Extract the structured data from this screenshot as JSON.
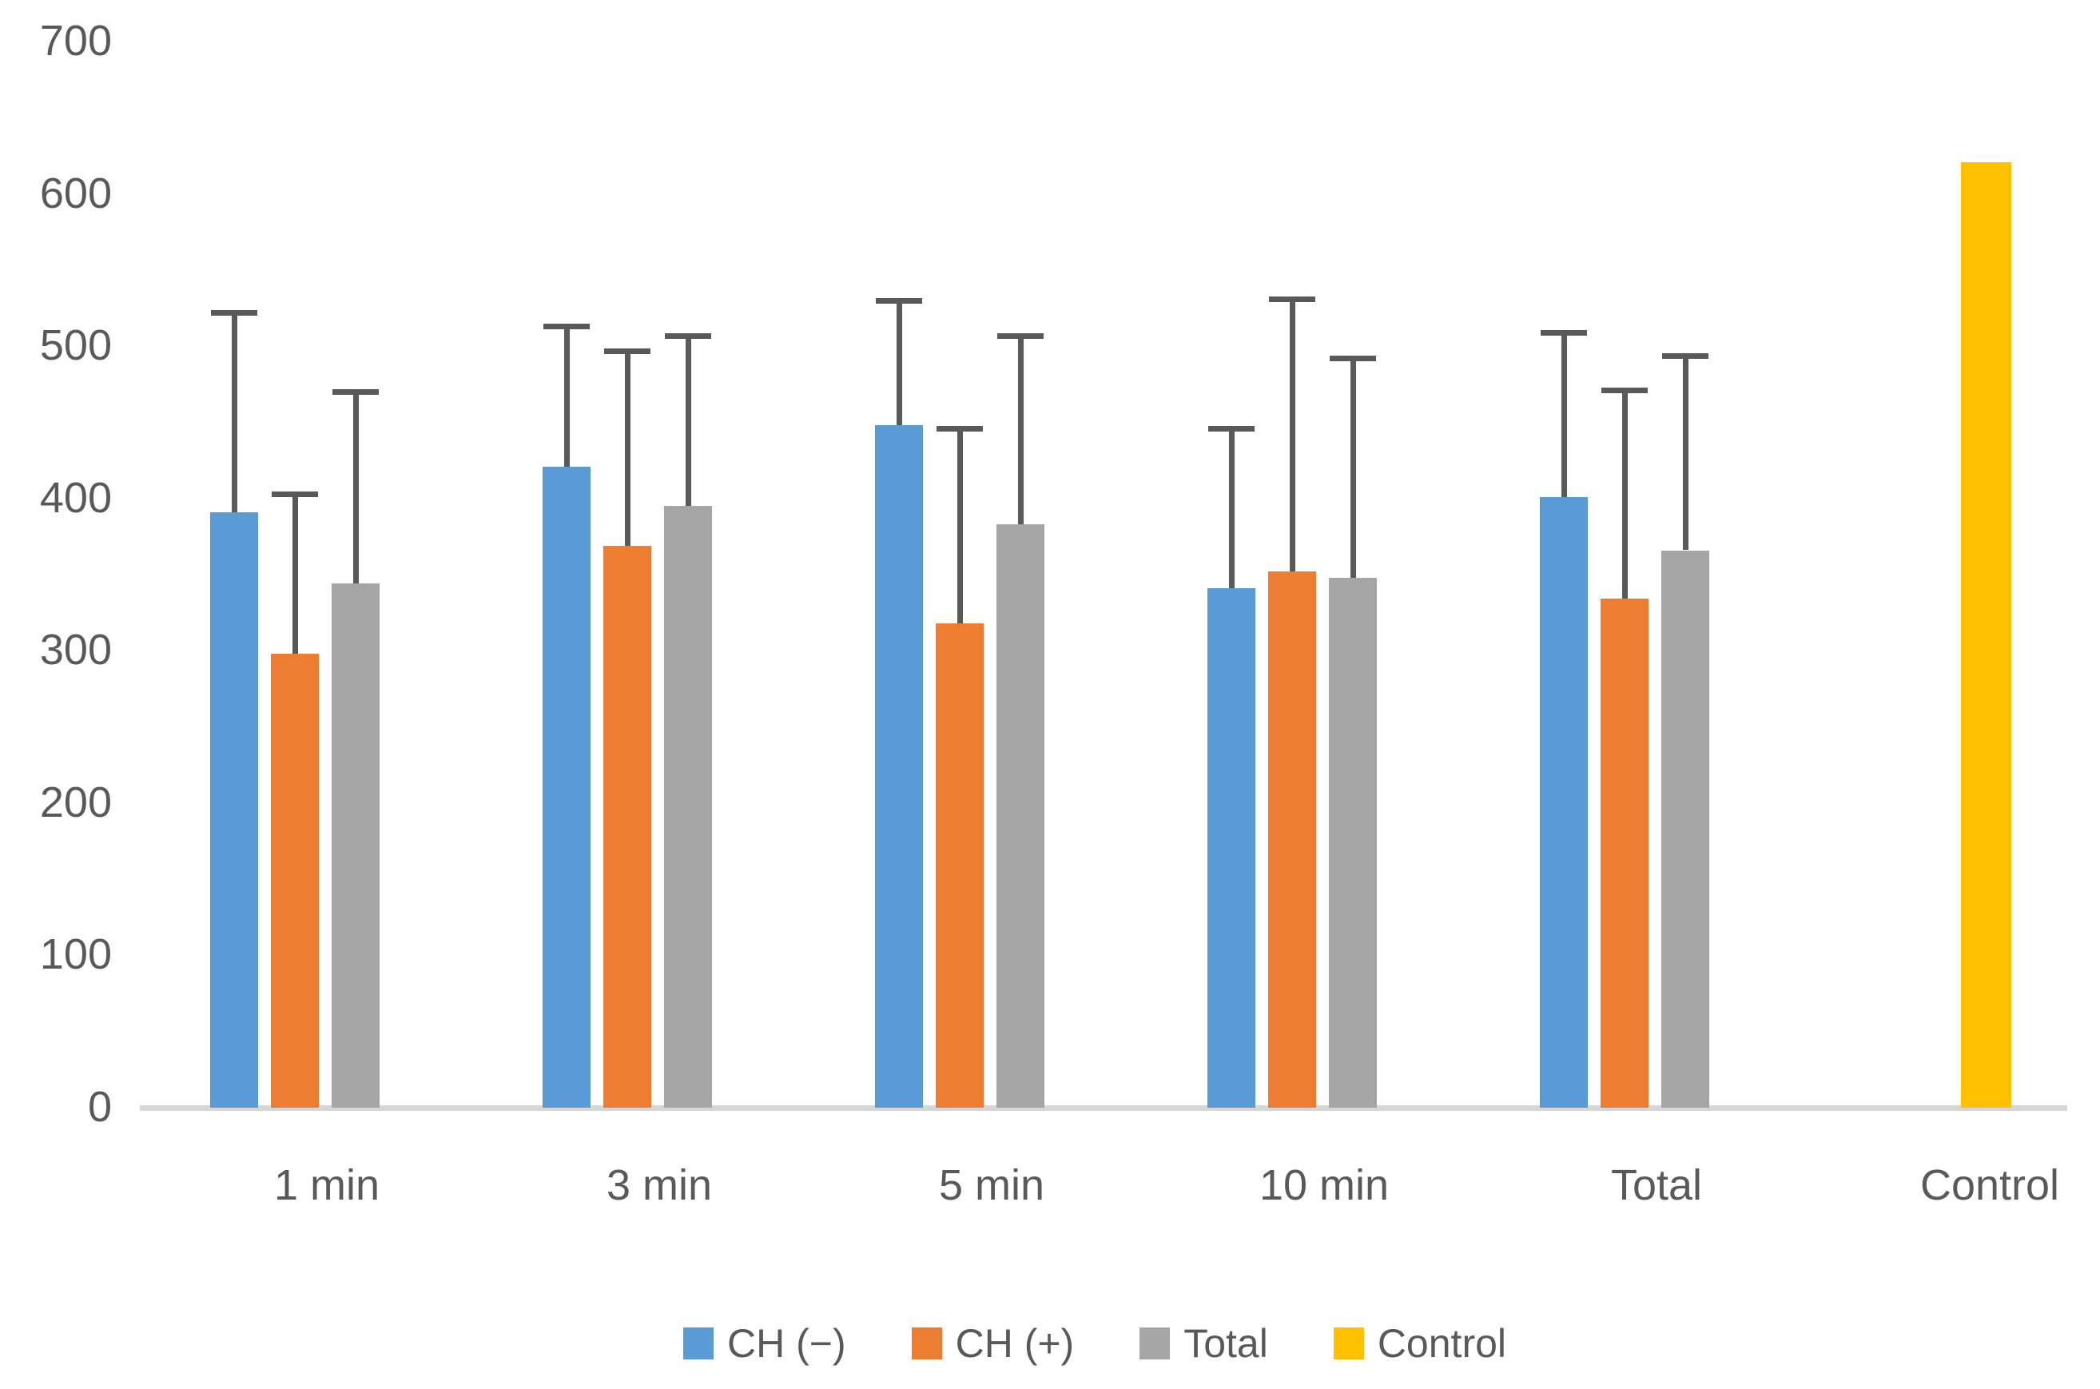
{
  "chart_data": {
    "type": "bar",
    "title": "",
    "categories": [
      "1 min",
      "3 min",
      "5 min",
      "10 min",
      "Total",
      "Control"
    ],
    "series": [
      {
        "name": "CH (−)",
        "color": "#5B9BD5",
        "values": [
          391,
          421,
          448,
          341,
          401,
          null
        ],
        "errors_plus": [
          131,
          92,
          82,
          105,
          108,
          null
        ]
      },
      {
        "name": "CH (+)",
        "color": "#ED7D31",
        "values": [
          298,
          369,
          318,
          352,
          334,
          null
        ],
        "errors_plus": [
          105,
          128,
          128,
          179,
          137,
          null
        ]
      },
      {
        "name": "Total",
        "color": "#A5A5A5",
        "values": [
          344,
          395,
          383,
          348,
          366,
          null
        ],
        "errors_plus": [
          126,
          112,
          124,
          144,
          128,
          null
        ]
      },
      {
        "name": "Control",
        "color": "#FFC000",
        "values": [
          null,
          null,
          null,
          null,
          null,
          621
        ],
        "errors_plus": [
          null,
          null,
          null,
          null,
          null,
          null
        ]
      }
    ],
    "ylim": [
      0,
      700
    ],
    "yticks": [
      0,
      100,
      200,
      300,
      400,
      500,
      600,
      700
    ],
    "xlabel": "",
    "ylabel": "",
    "grid": false,
    "legend_position": "bottom",
    "error_bar_color": "#595959",
    "axis_line_color": "#D6D6D6",
    "tick_label_color": "#595959"
  }
}
